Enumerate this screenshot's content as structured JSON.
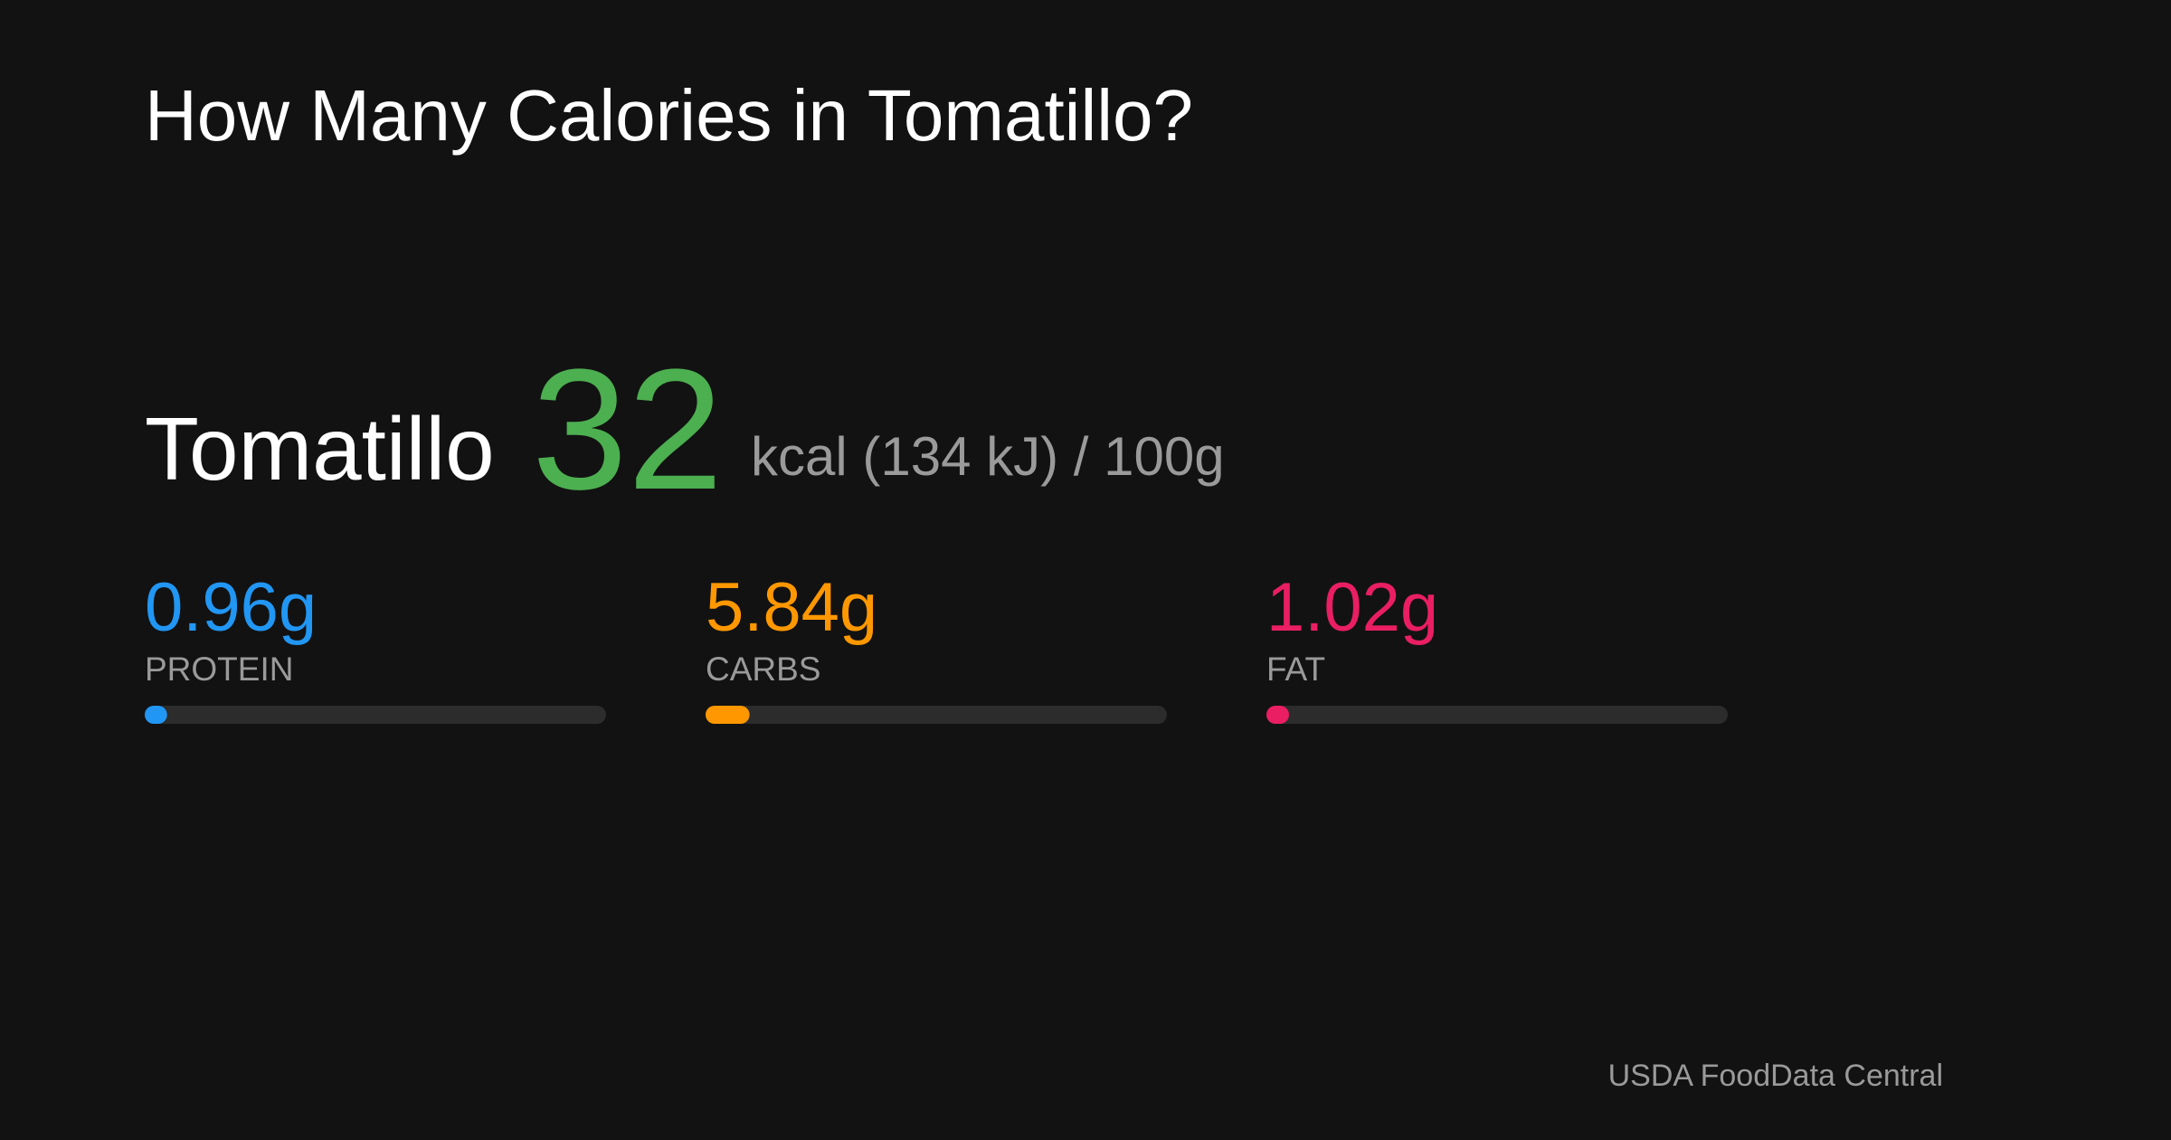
{
  "title": "How Many Calories in Tomatillo?",
  "food": {
    "name": "Tomatillo",
    "calories": "32",
    "unit": "kcal (134 kJ) / 100g"
  },
  "macros": {
    "xlim": [
      0,
      100
    ],
    "items": [
      {
        "name": "PROTEIN",
        "value": 0.96,
        "value_label": "0.96g",
        "color": "#2196f3"
      },
      {
        "name": "CARBS",
        "value": 5.84,
        "value_label": "5.84g",
        "color": "#ff9800"
      },
      {
        "name": "FAT",
        "value": 1.02,
        "value_label": "1.02g",
        "color": "#e91e63"
      }
    ]
  },
  "source": "USDA FoodData Central"
}
